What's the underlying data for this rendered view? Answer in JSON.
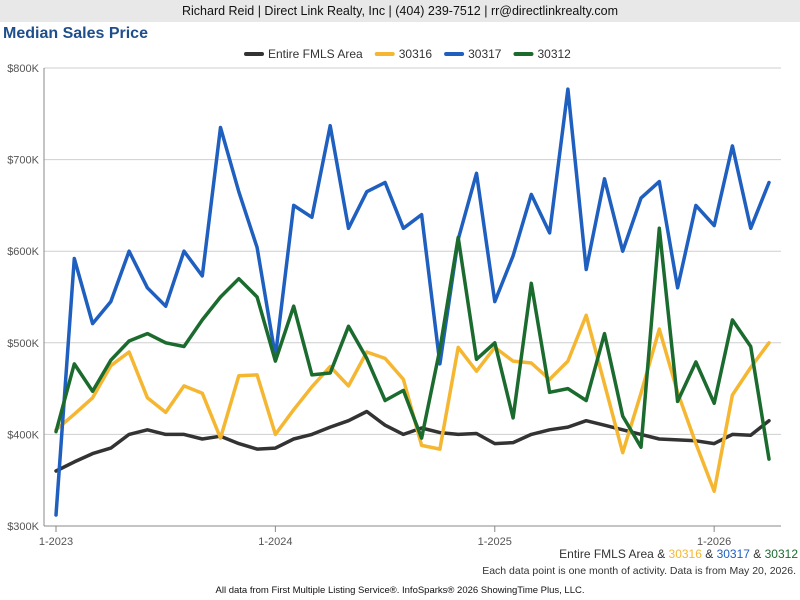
{
  "header": {
    "text": "Richard Reid | Direct Link Realty, Inc | (404) 239-7512 | rr@directlinkrealty.com"
  },
  "chart_title": "Median Sales Price",
  "footer": {
    "series_line": [
      {
        "text": "Entire FMLS Area",
        "color": "#333333"
      },
      {
        "text": " & ",
        "color": "#333333"
      },
      {
        "text": "30316",
        "color": "#f5b731"
      },
      {
        "text": " & ",
        "color": "#333333"
      },
      {
        "text": "30317",
        "color": "#1f5fbf"
      },
      {
        "text": " & ",
        "color": "#333333"
      },
      {
        "text": "30312",
        "color": "#1b6b2f"
      }
    ],
    "note": "Each data point is one month of activity. Data is from May 20, 2026.",
    "source": "All data from First Multiple Listing Service®. InfoSparks® 2026 ShowingTime Plus, LLC."
  },
  "chart_data": {
    "type": "line",
    "title": "Median Sales Price",
    "ylim": [
      300000,
      800000
    ],
    "y_ticks": [
      300000,
      400000,
      500000,
      600000,
      700000,
      800000
    ],
    "y_tick_labels": [
      "$300K",
      "$400K",
      "$500K",
      "$600K",
      "$700K",
      "$800K"
    ],
    "x": [
      "2023-01",
      "2023-02",
      "2023-03",
      "2023-04",
      "2023-05",
      "2023-06",
      "2023-07",
      "2023-08",
      "2023-09",
      "2023-10",
      "2023-11",
      "2023-12",
      "2024-01",
      "2024-02",
      "2024-03",
      "2024-04",
      "2024-05",
      "2024-06",
      "2024-07",
      "2024-08",
      "2024-09",
      "2024-10",
      "2024-11",
      "2024-12",
      "2025-01",
      "2025-02",
      "2025-03",
      "2025-04",
      "2025-05",
      "2025-06",
      "2025-07",
      "2025-08",
      "2025-09",
      "2025-10",
      "2025-11",
      "2025-12",
      "2026-01",
      "2026-02",
      "2026-03",
      "2026-04"
    ],
    "x_tick_labels": [
      {
        "at": "2023-01",
        "label": "1-2023"
      },
      {
        "at": "2024-01",
        "label": "1-2024"
      },
      {
        "at": "2025-01",
        "label": "1-2025"
      },
      {
        "at": "2026-01",
        "label": "1-2026"
      }
    ],
    "grid": true,
    "legend_position": "top",
    "series": [
      {
        "name": "Entire FMLS Area",
        "color": "#333333",
        "values": [
          360000,
          370000,
          379000,
          385000,
          400000,
          405000,
          400000,
          400000,
          395000,
          398000,
          390000,
          384000,
          385000,
          395000,
          400000,
          408000,
          415000,
          425000,
          410000,
          400000,
          407000,
          402000,
          400000,
          401000,
          390000,
          391000,
          400000,
          405000,
          408000,
          415000,
          410000,
          405000,
          400000,
          395000,
          394000,
          393000,
          390000,
          400000,
          399000,
          415000
        ]
      },
      {
        "name": "30316",
        "color": "#f5b731",
        "values": [
          405000,
          422000,
          440000,
          475000,
          490000,
          440000,
          424000,
          453000,
          445000,
          396000,
          464000,
          465000,
          400000,
          427000,
          452000,
          474000,
          453000,
          490000,
          483000,
          460000,
          388000,
          384000,
          495000,
          469000,
          495000,
          480000,
          478000,
          460000,
          480000,
          530000,
          455000,
          380000,
          445000,
          515000,
          446000,
          390000,
          338000,
          443000,
          473000,
          500000
        ]
      },
      {
        "name": "30317",
        "color": "#1f5fbf",
        "values": [
          312000,
          592000,
          521000,
          545000,
          600000,
          560000,
          540000,
          600000,
          573000,
          735000,
          665000,
          604000,
          485000,
          650000,
          637000,
          737000,
          625000,
          665000,
          675000,
          625000,
          640000,
          477000,
          613000,
          685000,
          545000,
          595000,
          662000,
          620000,
          777000,
          580000,
          679000,
          600000,
          658000,
          676000,
          560000,
          650000,
          628000,
          715000,
          625000,
          675000
        ]
      },
      {
        "name": "30312",
        "color": "#1b6b2f",
        "values": [
          403000,
          477000,
          447000,
          481000,
          502000,
          510000,
          500000,
          496000,
          525000,
          550000,
          570000,
          550000,
          480000,
          540000,
          465000,
          467000,
          518000,
          483000,
          437000,
          448000,
          396000,
          493000,
          615000,
          482000,
          500000,
          418000,
          565000,
          446000,
          450000,
          437000,
          510000,
          420000,
          386000,
          625000,
          436000,
          479000,
          434000,
          525000,
          496000,
          373000
        ]
      }
    ]
  }
}
